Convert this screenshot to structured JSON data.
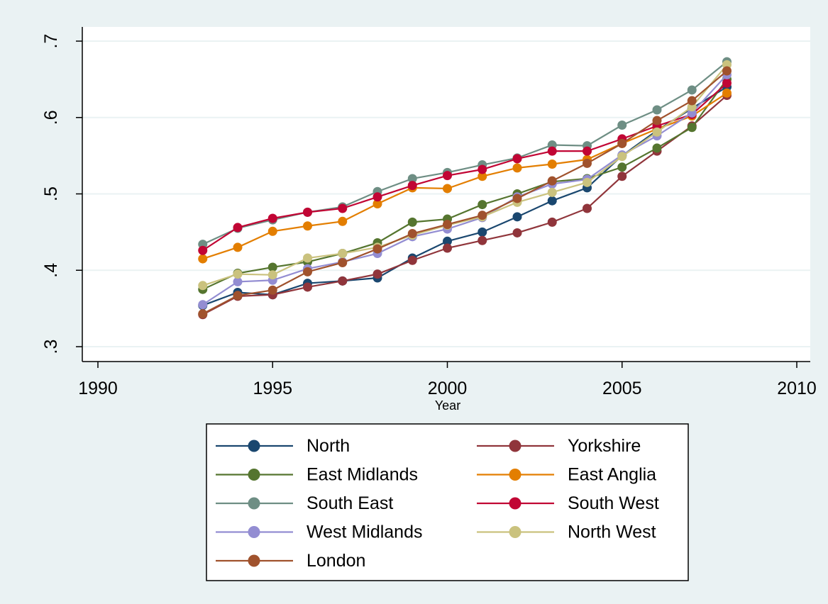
{
  "chart_data": {
    "type": "line",
    "title": "",
    "xlabel": "Year",
    "ylabel": "",
    "xlim": [
      1990,
      2010
    ],
    "ylim": [
      0.3,
      0.7
    ],
    "x_ticks": [
      1990,
      1995,
      2000,
      2005,
      2010
    ],
    "x_tick_labels": [
      "1990",
      "1995",
      "2000",
      "2005",
      "2010"
    ],
    "y_ticks": [
      0.3,
      0.4,
      0.5,
      0.6,
      0.7
    ],
    "y_tick_labels": [
      ".3",
      ".4",
      ".5",
      ".6",
      ".7"
    ],
    "grid": true,
    "legend_position": "bottom",
    "x": [
      1993,
      1994,
      1995,
      1996,
      1997,
      1998,
      1999,
      2000,
      2001,
      2002,
      2003,
      2004,
      2005,
      2006,
      2007,
      2008
    ],
    "series": [
      {
        "name": "North",
        "color": "#1a476f",
        "values": [
          0.354,
          0.371,
          0.368,
          0.383,
          0.386,
          0.39,
          0.416,
          0.438,
          0.45,
          0.47,
          0.491,
          0.508,
          0.55,
          0.583,
          0.612,
          0.64
        ]
      },
      {
        "name": "Yorkshire",
        "color": "#90353b",
        "values": [
          0.342,
          0.366,
          0.368,
          0.378,
          0.386,
          0.395,
          0.413,
          0.429,
          0.439,
          0.449,
          0.463,
          0.481,
          0.523,
          0.556,
          0.589,
          0.629
        ]
      },
      {
        "name": "East Midlands",
        "color": "#55752f",
        "values": [
          0.375,
          0.396,
          0.404,
          0.411,
          0.422,
          0.436,
          0.463,
          0.467,
          0.486,
          0.5,
          0.516,
          0.52,
          0.535,
          0.56,
          0.587,
          0.65
        ]
      },
      {
        "name": "East Anglia",
        "color": "#e37e00",
        "values": [
          0.415,
          0.43,
          0.451,
          0.458,
          0.464,
          0.487,
          0.508,
          0.507,
          0.523,
          0.534,
          0.539,
          0.545,
          0.566,
          0.585,
          0.602,
          0.632
        ]
      },
      {
        "name": "South East",
        "color": "#6e8e84",
        "values": [
          0.434,
          0.455,
          0.466,
          0.476,
          0.483,
          0.503,
          0.52,
          0.528,
          0.538,
          0.547,
          0.564,
          0.563,
          0.59,
          0.61,
          0.636,
          0.673
        ]
      },
      {
        "name": "South West",
        "color": "#c10534",
        "values": [
          0.426,
          0.456,
          0.468,
          0.476,
          0.481,
          0.496,
          0.511,
          0.524,
          0.532,
          0.546,
          0.556,
          0.556,
          0.572,
          0.589,
          0.604,
          0.645
        ]
      },
      {
        "name": "West Midlands",
        "color": "#938dd2",
        "values": [
          0.355,
          0.385,
          0.387,
          0.402,
          0.411,
          0.422,
          0.444,
          0.454,
          0.469,
          0.496,
          0.513,
          0.519,
          0.551,
          0.576,
          0.606,
          0.656
        ]
      },
      {
        "name": "North West",
        "color": "#cac27e",
        "values": [
          0.38,
          0.395,
          0.394,
          0.416,
          0.422,
          0.43,
          0.446,
          0.459,
          0.47,
          0.489,
          0.502,
          0.515,
          0.549,
          0.581,
          0.614,
          0.669
        ]
      },
      {
        "name": "London",
        "color": "#a0522d",
        "values": [
          0.343,
          0.367,
          0.374,
          0.398,
          0.41,
          0.428,
          0.448,
          0.46,
          0.472,
          0.494,
          0.517,
          0.54,
          0.566,
          0.596,
          0.622,
          0.661
        ]
      }
    ]
  }
}
